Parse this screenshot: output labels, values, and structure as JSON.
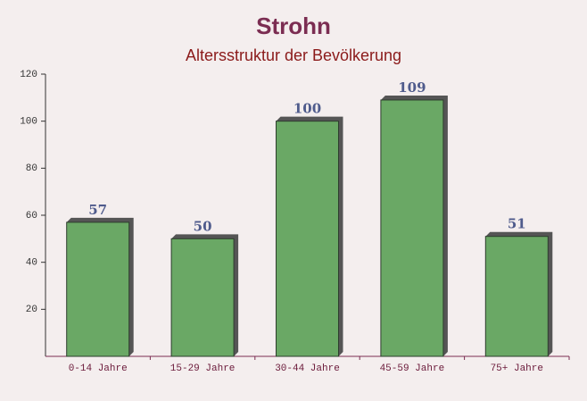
{
  "chart_data": {
    "type": "bar",
    "title": "Strohn",
    "subtitle": "Altersstruktur der Bevölkerung",
    "categories": [
      "0-14 Jahre",
      "15-29 Jahre",
      "30-44 Jahre",
      "45-59 Jahre",
      "75+ Jahre"
    ],
    "values": [
      57,
      50,
      100,
      109,
      51
    ],
    "color": "#6aa865",
    "ylim": [
      0,
      120
    ],
    "yticks": [
      20,
      40,
      60,
      80,
      100,
      120
    ]
  }
}
